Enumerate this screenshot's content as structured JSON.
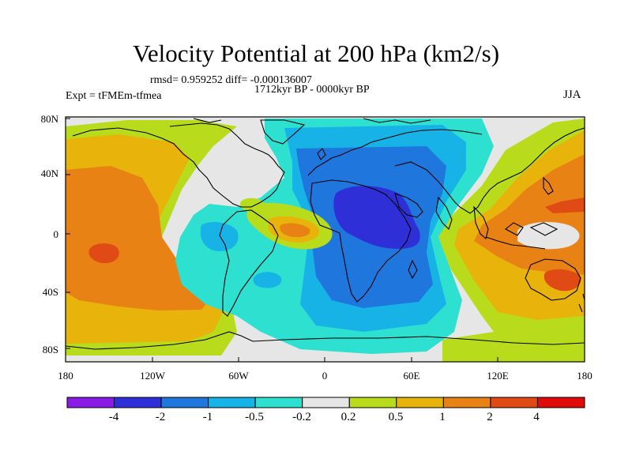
{
  "title": "Velocity Potential at 200 hPa (km2/s)",
  "stats": "rmsd= 0.959252 diff= -0.000136007",
  "period": "1712kyr BP - 0000kyr BP",
  "experiment": "Expt = tFMEm-tfmea",
  "season": "JJA",
  "lat_ticks": [
    "80N",
    "40N",
    "0",
    "40S",
    "80S"
  ],
  "lon_ticks": [
    "180",
    "120W",
    "60W",
    "0",
    "60E",
    "120E",
    "180"
  ],
  "colorbar": {
    "labels": [
      "-4",
      "-2",
      "-1",
      "-0.5",
      "-0.2",
      "0.2",
      "0.5",
      "1",
      "2",
      "4"
    ],
    "colors": [
      "#8a1ae6",
      "#2f2fd8",
      "#1f77dd",
      "#18b3e6",
      "#2ee0cf",
      "#e6e6e6",
      "#b8dc1c",
      "#e8b40c",
      "#e88214",
      "#e04a14",
      "#e00a0a"
    ]
  }
}
